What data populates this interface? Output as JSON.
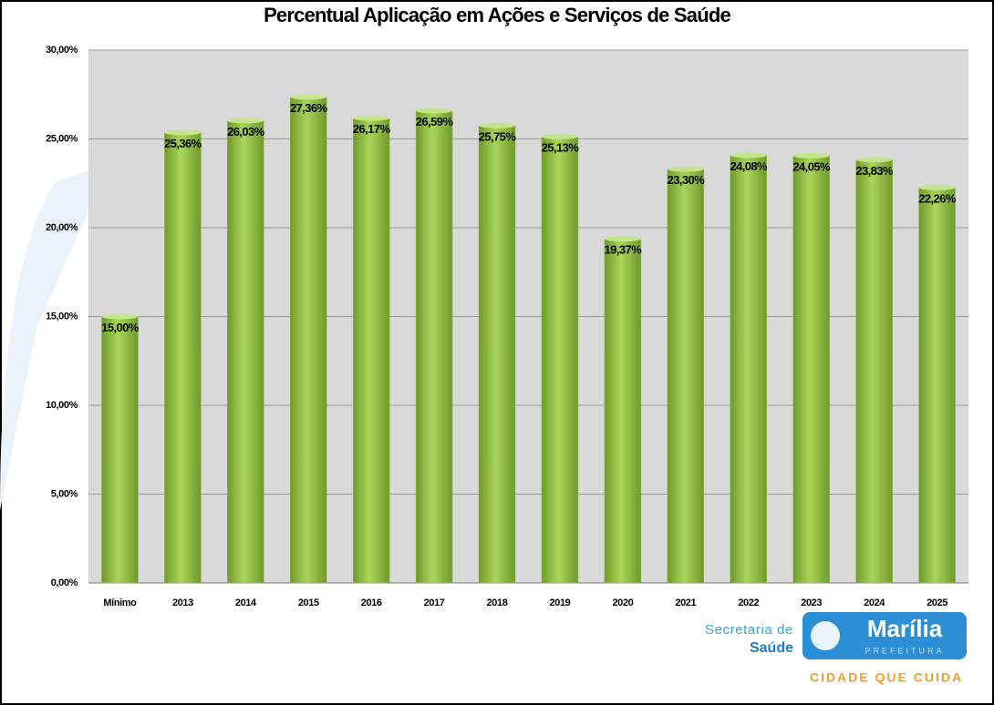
{
  "chart_data": {
    "type": "bar",
    "title": "Percentual Aplicação em Ações e Serviços de Saúde",
    "categories": [
      "Mínimo",
      "2013",
      "2014",
      "2015",
      "2016",
      "2017",
      "2018",
      "2019",
      "2020",
      "2021",
      "2022",
      "2023",
      "2024",
      "2025"
    ],
    "values": [
      15.0,
      25.36,
      26.03,
      27.36,
      26.17,
      26.59,
      25.75,
      25.13,
      19.37,
      23.3,
      24.08,
      24.05,
      23.83,
      22.26
    ],
    "value_labels": [
      "15,00%",
      "25,36%",
      "26,03%",
      "27,36%",
      "26,17%",
      "26,59%",
      "25,75%",
      "25,13%",
      "19,37%",
      "23,30%",
      "24,08%",
      "24,05%",
      "23,83%",
      "22,26%"
    ],
    "color": "#92c045",
    "ylim": [
      0,
      30
    ],
    "yticks": [
      {
        "value": 0,
        "label": "0,00%"
      },
      {
        "value": 5,
        "label": "5,00%"
      },
      {
        "value": 10,
        "label": "10,00%"
      },
      {
        "value": 15,
        "label": "15,00%"
      },
      {
        "value": 20,
        "label": "20,00%"
      },
      {
        "value": 25,
        "label": "25,00%"
      },
      {
        "value": 30,
        "label": "30,00%"
      }
    ],
    "grid": true
  },
  "logo": {
    "secretaria": "Secretaria de",
    "saude": "Saúde",
    "city": "Marília",
    "prefeitura": "PREFEITURA",
    "slogan": "CIDADE QUE CUIDA"
  }
}
